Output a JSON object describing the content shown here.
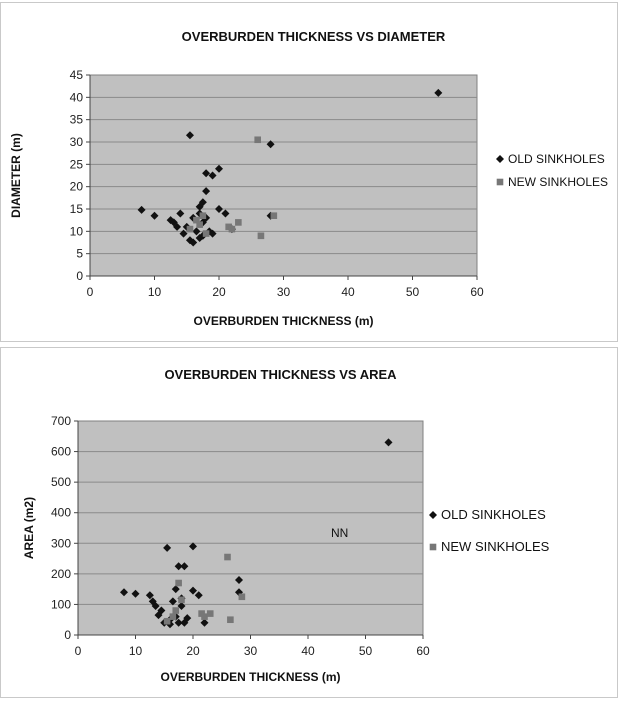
{
  "chart_data": [
    {
      "type": "scatter",
      "title": "OVERBURDEN THICKNESS VS DIAMETER",
      "xlabel": "OVERBURDEN THICKNESS (m)",
      "ylabel": "DIAMETER (m)",
      "xlim": [
        0,
        60
      ],
      "ylim": [
        0,
        45
      ],
      "xticks": [
        "0",
        "10",
        "20",
        "30",
        "40",
        "50",
        "60"
      ],
      "yticks": [
        "0",
        "5",
        "10",
        "15",
        "20",
        "25",
        "30",
        "35",
        "40",
        "45"
      ],
      "grid": true,
      "legend": "right",
      "series": [
        {
          "name": "OLD SINKHOLES",
          "marker": "diamond",
          "color": "#111111",
          "points": [
            [
              8,
              14.8
            ],
            [
              10,
              13.5
            ],
            [
              12.5,
              12.5
            ],
            [
              13,
              12
            ],
            [
              13.5,
              11
            ],
            [
              14,
              14
            ],
            [
              14.5,
              9.5
            ],
            [
              15,
              11
            ],
            [
              15.5,
              8
            ],
            [
              15.5,
              31.5
            ],
            [
              16,
              7.5
            ],
            [
              16,
              13
            ],
            [
              16.5,
              10
            ],
            [
              17,
              8.5
            ],
            [
              17,
              14
            ],
            [
              17,
              15.5
            ],
            [
              17.5,
              9
            ],
            [
              17.5,
              16.5
            ],
            [
              17.5,
              12
            ],
            [
              18,
              19
            ],
            [
              18,
              13
            ],
            [
              18,
              23
            ],
            [
              18.5,
              10
            ],
            [
              19,
              22.5
            ],
            [
              19,
              9.5
            ],
            [
              20,
              15
            ],
            [
              20,
              24
            ],
            [
              21,
              14
            ],
            [
              22,
              10.5
            ],
            [
              28,
              13.5
            ],
            [
              28,
              29.5
            ],
            [
              54,
              41
            ]
          ]
        },
        {
          "name": "NEW SINKHOLES",
          "marker": "square",
          "color": "#777777",
          "points": [
            [
              15.5,
              10.5
            ],
            [
              16.5,
              12.5
            ],
            [
              17,
              11.5
            ],
            [
              17.5,
              13.5
            ],
            [
              18,
              9.5
            ],
            [
              21.5,
              11
            ],
            [
              22,
              10.5
            ],
            [
              23,
              12
            ],
            [
              26,
              30.5
            ],
            [
              26.5,
              9
            ],
            [
              28.5,
              13.5
            ]
          ]
        }
      ]
    },
    {
      "type": "scatter",
      "title": "OVERBURDEN THICKNESS VS AREA",
      "xlabel": "OVERBURDEN THICKNESS (m)",
      "ylabel": "AREA (m2)",
      "xlim": [
        0,
        60
      ],
      "ylim": [
        0,
        700
      ],
      "xticks": [
        "0",
        "10",
        "20",
        "30",
        "40",
        "50",
        "60"
      ],
      "yticks": [
        "0",
        "100",
        "200",
        "300",
        "400",
        "500",
        "600",
        "700"
      ],
      "grid": true,
      "legend": "right",
      "annotation": {
        "text": "NN",
        "x": 44,
        "y": 320
      },
      "series": [
        {
          "name": "OLD SINKHOLES",
          "marker": "diamond",
          "color": "#111111",
          "points": [
            [
              8,
              140
            ],
            [
              10,
              135
            ],
            [
              12.5,
              130
            ],
            [
              13,
              110
            ],
            [
              13.5,
              95
            ],
            [
              14,
              65
            ],
            [
              14.5,
              80
            ],
            [
              15,
              40
            ],
            [
              15.5,
              285
            ],
            [
              16,
              35
            ],
            [
              16,
              50
            ],
            [
              16.5,
              110
            ],
            [
              17,
              60
            ],
            [
              17,
              150
            ],
            [
              17.5,
              225
            ],
            [
              17.5,
              40
            ],
            [
              18,
              95
            ],
            [
              18,
              120
            ],
            [
              18.5,
              225
            ],
            [
              18.5,
              40
            ],
            [
              19,
              55
            ],
            [
              20,
              290
            ],
            [
              20,
              145
            ],
            [
              21,
              130
            ],
            [
              22,
              40
            ],
            [
              28,
              180
            ],
            [
              28,
              140
            ],
            [
              54,
              630
            ]
          ]
        },
        {
          "name": "NEW SINKHOLES",
          "marker": "square",
          "color": "#777777",
          "points": [
            [
              15.5,
              45
            ],
            [
              16.5,
              60
            ],
            [
              17,
              80
            ],
            [
              17.5,
              170
            ],
            [
              18,
              115
            ],
            [
              21.5,
              70
            ],
            [
              22,
              60
            ],
            [
              23,
              70
            ],
            [
              26,
              255
            ],
            [
              26.5,
              50
            ],
            [
              28.5,
              125
            ]
          ]
        }
      ]
    }
  ]
}
